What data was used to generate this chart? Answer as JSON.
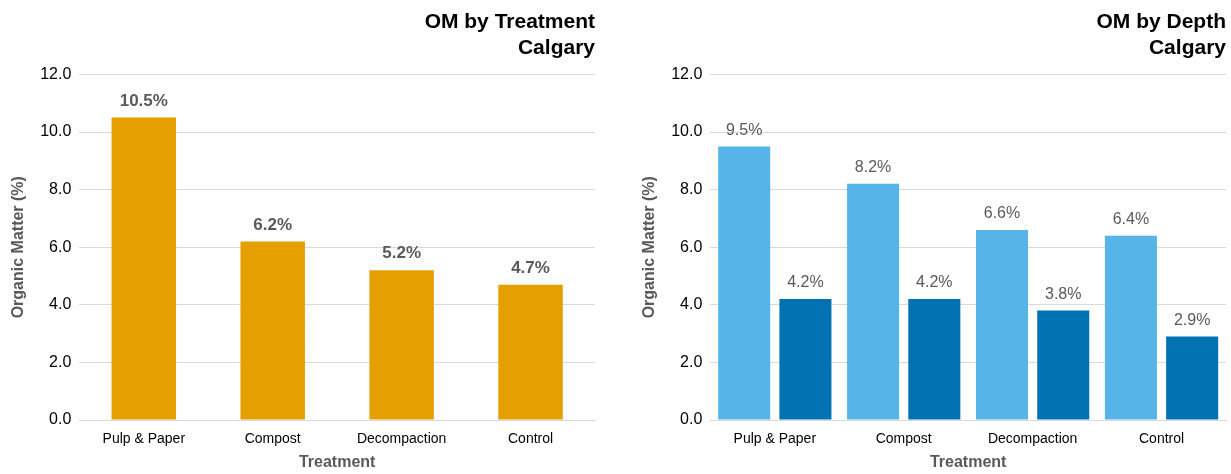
{
  "chart_data": [
    {
      "type": "bar",
      "title": "OM by Treatment\nCalgary",
      "xlabel": "Treatment",
      "ylabel": "Organic Matter (%)",
      "categories": [
        "Pulp & Paper",
        "Compost",
        "Decompaction",
        "Control"
      ],
      "series": [
        {
          "color": "#e69f00",
          "values": [
            10.5,
            6.2,
            5.2,
            4.7
          ],
          "value_labels": [
            "10.5%",
            "6.2%",
            "5.2%",
            "4.7%"
          ]
        }
      ],
      "ylim": [
        0,
        12
      ],
      "yticks": [
        {
          "value": 0,
          "label": "0.0"
        },
        {
          "value": 2,
          "label": "2.0"
        },
        {
          "value": 4,
          "label": "4.0"
        },
        {
          "value": 6,
          "label": "6.0"
        },
        {
          "value": 8,
          "label": "8.0"
        },
        {
          "value": 10,
          "label": "10.0"
        },
        {
          "value": 12,
          "label": "12.0"
        }
      ],
      "grid": "y",
      "legend": false
    },
    {
      "type": "bar",
      "title": "OM by Depth\nCalgary",
      "xlabel": "Treatment",
      "ylabel": "Organic Matter (%)",
      "categories": [
        "Pulp & Paper",
        "Compost",
        "Decompaction",
        "Control"
      ],
      "series": [
        {
          "color": "#56b4e9",
          "values": [
            9.5,
            8.2,
            6.6,
            6.4
          ],
          "value_labels": [
            "9.5%",
            "8.2%",
            "6.6%",
            "6.4%"
          ]
        },
        {
          "color": "#0072b2",
          "values": [
            4.2,
            4.2,
            3.8,
            2.9
          ],
          "value_labels": [
            "4.2%",
            "4.2%",
            "3.8%",
            "2.9%"
          ]
        }
      ],
      "ylim": [
        0,
        12
      ],
      "yticks": [
        {
          "value": 0,
          "label": "0.0"
        },
        {
          "value": 2,
          "label": "2.0"
        },
        {
          "value": 4,
          "label": "4.0"
        },
        {
          "value": 6,
          "label": "6.0"
        },
        {
          "value": 8,
          "label": "8.0"
        },
        {
          "value": 10,
          "label": "10.0"
        },
        {
          "value": 12,
          "label": "12.0"
        }
      ],
      "grid": "y",
      "legend": false
    }
  ]
}
